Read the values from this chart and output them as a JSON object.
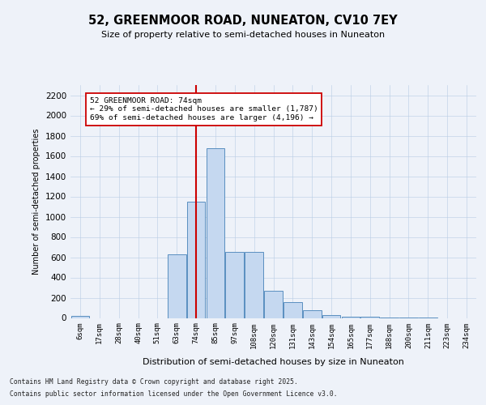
{
  "title1": "52, GREENMOOR ROAD, NUNEATON, CV10 7EY",
  "title2": "Size of property relative to semi-detached houses in Nuneaton",
  "xlabel": "Distribution of semi-detached houses by size in Nuneaton",
  "ylabel": "Number of semi-detached properties",
  "annotation_title": "52 GREENMOOR ROAD: 74sqm",
  "annotation_line1": "← 29% of semi-detached houses are smaller (1,787)",
  "annotation_line2": "69% of semi-detached houses are larger (4,196) →",
  "footer1": "Contains HM Land Registry data © Crown copyright and database right 2025.",
  "footer2": "Contains public sector information licensed under the Open Government Licence v3.0.",
  "categories": [
    "6sqm",
    "17sqm",
    "28sqm",
    "40sqm",
    "51sqm",
    "63sqm",
    "74sqm",
    "85sqm",
    "97sqm",
    "108sqm",
    "120sqm",
    "131sqm",
    "143sqm",
    "154sqm",
    "165sqm",
    "177sqm",
    "188sqm",
    "200sqm",
    "211sqm",
    "223sqm",
    "234sqm"
  ],
  "values": [
    20,
    0,
    0,
    0,
    0,
    630,
    1150,
    1680,
    650,
    650,
    270,
    155,
    75,
    30,
    15,
    10,
    5,
    5,
    2,
    0,
    0
  ],
  "bar_color": "#c5d8f0",
  "bar_edge_color": "#5a8fc0",
  "marker_color": "#cc0000",
  "bg_color": "#eef2f9",
  "annotation_box_color": "#ffffff",
  "annotation_box_edge": "#cc0000",
  "prop_bin_idx": 6,
  "ylim": [
    0,
    2300
  ],
  "yticks": [
    0,
    200,
    400,
    600,
    800,
    1000,
    1200,
    1400,
    1600,
    1800,
    2000,
    2200
  ]
}
